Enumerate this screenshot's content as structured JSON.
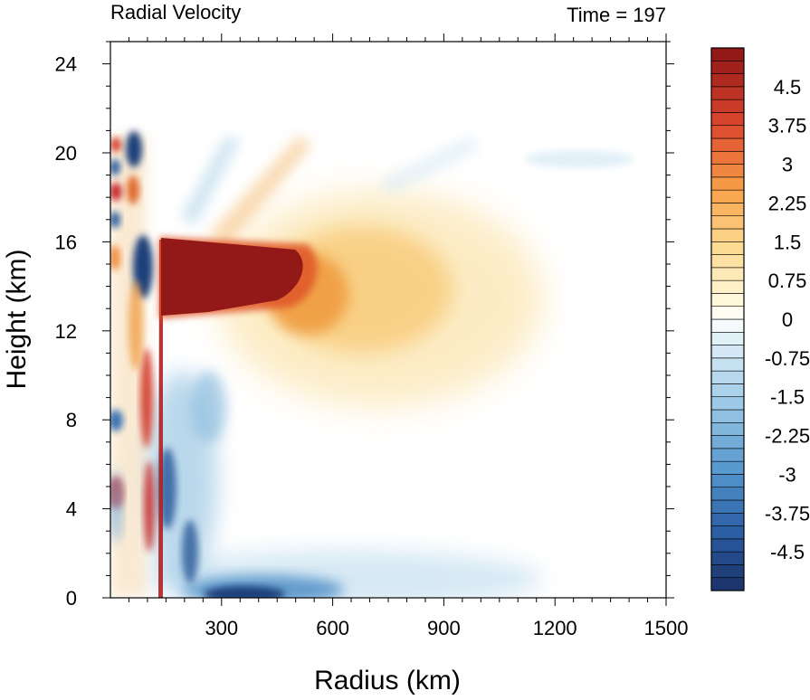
{
  "chart_data": {
    "type": "heatmap",
    "title_left": "Radial Velocity",
    "title_right": "Time = 197",
    "xlabel": "Radius (km)",
    "ylabel": "Height (km)",
    "xlim": [
      0,
      1500
    ],
    "ylim": [
      0,
      25
    ],
    "xticks": [
      300,
      600,
      900,
      1200,
      1500
    ],
    "yticks": [
      0,
      4,
      8,
      12,
      16,
      20,
      24
    ],
    "colorbar": {
      "min": -5.25,
      "max": 5.25,
      "step": 0.25,
      "labels": [
        "4.5",
        "3.75",
        "3",
        "2.25",
        "1.5",
        "0.75",
        "0",
        "-0.75",
        "-1.5",
        "-2.25",
        "-3",
        "-3.75",
        "-4.5"
      ],
      "label_values": [
        4.5,
        3.75,
        3,
        2.25,
        1.5,
        0.75,
        0,
        -0.75,
        -1.5,
        -2.25,
        -3,
        -3.75,
        -4.5
      ]
    },
    "features": [
      {
        "name": "upper outflow jet core",
        "r": [
          150,
          480
        ],
        "z": [
          13,
          16.4
        ],
        "value": 5.25
      },
      {
        "name": "outflow tail",
        "r": [
          480,
          900
        ],
        "z": [
          9,
          17.5
        ],
        "value": 1.8
      },
      {
        "name": "low-level inflow",
        "r": [
          200,
          700
        ],
        "z": [
          0,
          1.5
        ],
        "value": -4.5
      },
      {
        "name": "inner-core oscillations",
        "r": [
          0,
          160
        ],
        "z": [
          0,
          21
        ],
        "value": "alternating +/-"
      }
    ]
  }
}
